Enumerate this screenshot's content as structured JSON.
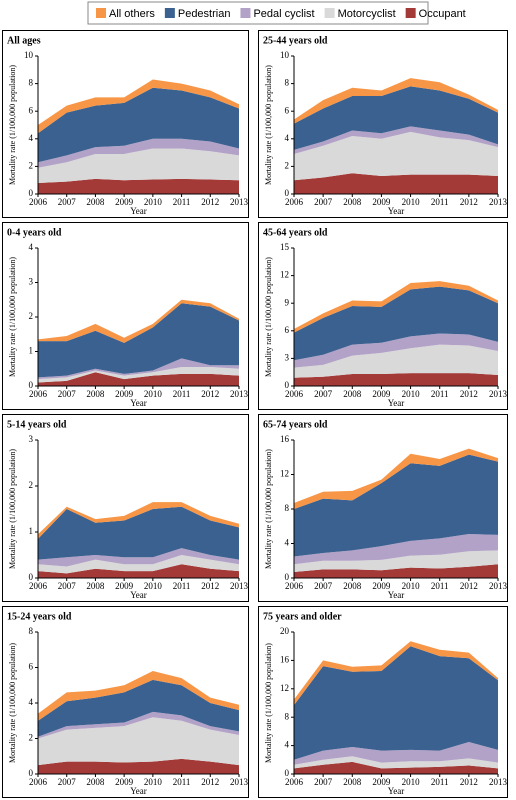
{
  "chart_data": [
    {
      "type": "area",
      "title": "All ages",
      "xlabel": "Year",
      "ylabel": "Mortality rate (1/100,000 population)",
      "x": [
        2006,
        2007,
        2008,
        2009,
        2010,
        2011,
        2012,
        2013
      ],
      "xlim": [
        2006,
        2013
      ],
      "ylim": [
        0,
        10
      ],
      "yticks": [
        0,
        2,
        4,
        6,
        8,
        10
      ],
      "series": [
        {
          "name": "Occupant",
          "color": "#a33a37",
          "values": [
            0.8,
            0.9,
            1.1,
            1.0,
            1.05,
            1.1,
            1.05,
            1.0
          ]
        },
        {
          "name": "Motorcyclist",
          "color": "#d9d9d9",
          "values": [
            1.1,
            1.4,
            1.8,
            1.9,
            2.25,
            2.2,
            2.05,
            1.8
          ]
        },
        {
          "name": "Pedal cyclist",
          "color": "#b3a2c7",
          "values": [
            0.4,
            0.5,
            0.5,
            0.6,
            0.7,
            0.7,
            0.7,
            0.5
          ]
        },
        {
          "name": "Pedestrian",
          "color": "#3b6190",
          "values": [
            2.1,
            3.1,
            3.0,
            3.1,
            3.7,
            3.5,
            3.2,
            2.9
          ]
        },
        {
          "name": "All others",
          "color": "#f79646",
          "values": [
            0.6,
            0.5,
            0.6,
            0.4,
            0.6,
            0.5,
            0.5,
            0.3
          ]
        }
      ]
    },
    {
      "type": "area",
      "title": "25-44 years old",
      "xlabel": "Year",
      "ylabel": "Mortality rate (1/100,000 population)",
      "x": [
        2006,
        2007,
        2008,
        2009,
        2010,
        2011,
        2012,
        2013
      ],
      "xlim": [
        2006,
        2013
      ],
      "ylim": [
        0,
        10
      ],
      "yticks": [
        0,
        2,
        4,
        6,
        8,
        10
      ],
      "series": [
        {
          "color": "#a33a37",
          "values": [
            1.0,
            1.2,
            1.5,
            1.3,
            1.4,
            1.4,
            1.4,
            1.3
          ]
        },
        {
          "color": "#d9d9d9",
          "values": [
            1.9,
            2.3,
            2.7,
            2.7,
            3.1,
            2.7,
            2.5,
            2.1
          ]
        },
        {
          "color": "#b3a2c7",
          "values": [
            0.3,
            0.3,
            0.4,
            0.4,
            0.4,
            0.5,
            0.4,
            0.2
          ]
        },
        {
          "color": "#3b6190",
          "values": [
            1.9,
            2.4,
            2.5,
            2.7,
            2.9,
            2.9,
            2.6,
            2.3
          ]
        },
        {
          "color": "#f79646",
          "values": [
            0.3,
            0.6,
            0.6,
            0.4,
            0.6,
            0.6,
            0.3,
            0.2
          ]
        }
      ]
    },
    {
      "type": "area",
      "title": "0-4 years old",
      "xlabel": "Year",
      "ylabel": "Mortality rate (1/100,000 population)",
      "x": [
        2006,
        2007,
        2008,
        2009,
        2010,
        2011,
        2012,
        2013
      ],
      "xlim": [
        2006,
        2013
      ],
      "ylim": [
        0,
        4
      ],
      "yticks": [
        0,
        1,
        2,
        3,
        4
      ],
      "series": [
        {
          "color": "#a33a37",
          "values": [
            0.1,
            0.15,
            0.4,
            0.2,
            0.3,
            0.35,
            0.35,
            0.3
          ]
        },
        {
          "color": "#d9d9d9",
          "values": [
            0.1,
            0.1,
            0.05,
            0.1,
            0.1,
            0.2,
            0.2,
            0.2
          ]
        },
        {
          "color": "#b3a2c7",
          "values": [
            0.05,
            0.05,
            0.05,
            0.05,
            0.05,
            0.25,
            0.05,
            0.1
          ]
        },
        {
          "color": "#3b6190",
          "values": [
            1.05,
            1.0,
            1.1,
            0.9,
            1.25,
            1.6,
            1.7,
            1.3
          ]
        },
        {
          "color": "#f79646",
          "values": [
            0.05,
            0.15,
            0.2,
            0.15,
            0.1,
            0.1,
            0.1,
            0.05
          ]
        }
      ]
    },
    {
      "type": "area",
      "title": "45-64 years old",
      "xlabel": "Year",
      "ylabel": "Mortality rate (1/100,000 population)",
      "x": [
        2006,
        2007,
        2008,
        2009,
        2010,
        2011,
        2012,
        2013
      ],
      "xlim": [
        2006,
        2013
      ],
      "ylim": [
        0,
        15
      ],
      "yticks": [
        0,
        3,
        6,
        9,
        12,
        15
      ],
      "series": [
        {
          "color": "#a33a37",
          "values": [
            0.9,
            1.0,
            1.3,
            1.3,
            1.4,
            1.4,
            1.4,
            1.2
          ]
        },
        {
          "color": "#d9d9d9",
          "values": [
            1.1,
            1.3,
            2.0,
            2.3,
            2.7,
            3.1,
            3.0,
            2.6
          ]
        },
        {
          "color": "#b3a2c7",
          "values": [
            0.8,
            1.1,
            1.2,
            1.1,
            1.3,
            1.2,
            1.2,
            1.0
          ]
        },
        {
          "color": "#3b6190",
          "values": [
            3.0,
            4.0,
            4.2,
            3.9,
            5.1,
            5.1,
            4.8,
            4.2
          ]
        },
        {
          "color": "#f79646",
          "values": [
            0.4,
            0.5,
            0.6,
            0.6,
            0.7,
            0.6,
            0.5,
            0.3
          ]
        }
      ]
    },
    {
      "type": "area",
      "title": "5-14 years old",
      "xlabel": "Year",
      "ylabel": "Mortality rate (1/100,000 population)",
      "x": [
        2006,
        2007,
        2008,
        2009,
        2010,
        2011,
        2012,
        2013
      ],
      "xlim": [
        2006,
        2013
      ],
      "ylim": [
        0,
        3
      ],
      "yticks": [
        0,
        1,
        2,
        3
      ],
      "series": [
        {
          "color": "#a33a37",
          "values": [
            0.15,
            0.1,
            0.2,
            0.15,
            0.15,
            0.3,
            0.2,
            0.15
          ]
        },
        {
          "color": "#d9d9d9",
          "values": [
            0.15,
            0.15,
            0.2,
            0.15,
            0.15,
            0.2,
            0.2,
            0.15
          ]
        },
        {
          "color": "#b3a2c7",
          "values": [
            0.1,
            0.2,
            0.1,
            0.15,
            0.15,
            0.15,
            0.1,
            0.1
          ]
        },
        {
          "color": "#3b6190",
          "values": [
            0.45,
            1.05,
            0.7,
            0.8,
            1.05,
            0.9,
            0.75,
            0.7
          ]
        },
        {
          "color": "#f79646",
          "values": [
            0.1,
            0.05,
            0.08,
            0.1,
            0.15,
            0.1,
            0.1,
            0.08
          ]
        }
      ]
    },
    {
      "type": "area",
      "title": "65-74 years old",
      "xlabel": "Year",
      "ylabel": "Mortality rate (1/100,000 population)",
      "x": [
        2006,
        2007,
        2008,
        2009,
        2010,
        2011,
        2012,
        2013
      ],
      "xlim": [
        2006,
        2013
      ],
      "ylim": [
        0,
        16
      ],
      "yticks": [
        0,
        4,
        8,
        12,
        16
      ],
      "series": [
        {
          "color": "#a33a37",
          "values": [
            0.7,
            1.0,
            1.0,
            0.9,
            1.2,
            1.1,
            1.3,
            1.6
          ]
        },
        {
          "color": "#d9d9d9",
          "values": [
            0.9,
            1.0,
            1.0,
            1.2,
            1.4,
            1.6,
            1.8,
            1.6
          ]
        },
        {
          "color": "#b3a2c7",
          "values": [
            0.9,
            0.9,
            1.2,
            1.6,
            1.7,
            1.9,
            2.0,
            1.8
          ]
        },
        {
          "color": "#3b6190",
          "values": [
            5.5,
            6.3,
            5.8,
            7.3,
            9.0,
            8.4,
            9.2,
            8.5
          ]
        },
        {
          "color": "#f79646",
          "values": [
            0.7,
            0.8,
            1.1,
            0.4,
            1.1,
            0.8,
            0.7,
            0.4
          ]
        }
      ]
    },
    {
      "type": "area",
      "title": "15-24 years old",
      "xlabel": "Year",
      "ylabel": "Mortality rate (1/100,000 population)",
      "x": [
        2006,
        2007,
        2008,
        2009,
        2010,
        2011,
        2012,
        2013
      ],
      "xlim": [
        2006,
        2013
      ],
      "ylim": [
        0,
        8
      ],
      "yticks": [
        0,
        2,
        4,
        6,
        8
      ],
      "series": [
        {
          "color": "#a33a37",
          "values": [
            0.5,
            0.7,
            0.7,
            0.65,
            0.7,
            0.85,
            0.7,
            0.5
          ]
        },
        {
          "color": "#d9d9d9",
          "values": [
            1.5,
            1.8,
            1.9,
            2.05,
            2.5,
            2.15,
            1.8,
            1.7
          ]
        },
        {
          "color": "#b3a2c7",
          "values": [
            0.1,
            0.2,
            0.2,
            0.2,
            0.3,
            0.3,
            0.2,
            0.2
          ]
        },
        {
          "color": "#3b6190",
          "values": [
            0.9,
            1.4,
            1.5,
            1.7,
            1.8,
            1.7,
            1.3,
            1.2
          ]
        },
        {
          "color": "#f79646",
          "values": [
            0.4,
            0.5,
            0.4,
            0.4,
            0.5,
            0.4,
            0.3,
            0.3
          ]
        }
      ]
    },
    {
      "type": "area",
      "title": "75 years and older",
      "xlabel": "Year",
      "ylabel": "Mortality rate (1/100,000 population)",
      "x": [
        2006,
        2007,
        2008,
        2009,
        2010,
        2011,
        2012,
        2013
      ],
      "xlim": [
        2006,
        2013
      ],
      "ylim": [
        0,
        20
      ],
      "yticks": [
        0,
        4,
        8,
        12,
        16,
        20
      ],
      "series": [
        {
          "color": "#a33a37",
          "values": [
            0.8,
            1.3,
            1.7,
            0.8,
            0.9,
            1.0,
            1.2,
            0.8
          ]
        },
        {
          "color": "#d9d9d9",
          "values": [
            0.5,
            0.7,
            0.8,
            0.8,
            0.9,
            0.8,
            1.0,
            0.8
          ]
        },
        {
          "color": "#b3a2c7",
          "values": [
            0.7,
            1.3,
            1.3,
            1.7,
            1.6,
            1.5,
            2.3,
            1.8
          ]
        },
        {
          "color": "#3b6190",
          "values": [
            7.7,
            11.9,
            10.6,
            11.2,
            14.6,
            13.3,
            11.8,
            9.8
          ]
        },
        {
          "color": "#f79646",
          "values": [
            0.8,
            0.8,
            0.7,
            0.8,
            0.7,
            0.9,
            0.8,
            0.3
          ]
        }
      ]
    }
  ]
}
